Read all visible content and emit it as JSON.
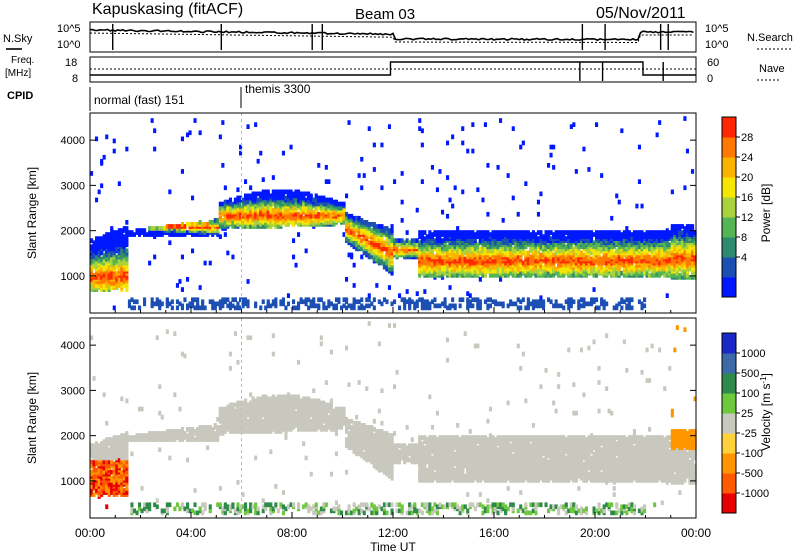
{
  "header": {
    "station": "Kapuskasing (fitACF)",
    "beam": "Beam 03",
    "date": "05/Nov/2011"
  },
  "top_panels": {
    "nsky_label": "N.Sky",
    "nsearch_label": "N.Search",
    "noise_ticks": [
      "10^5",
      "10^0"
    ],
    "freq_label_line1": "Freq.",
    "freq_label_line2": "[MHz]",
    "freq_ticks": [
      "18",
      "8"
    ],
    "nave_label": "Nave",
    "nave_ticks": [
      "60",
      "0"
    ],
    "cpid_label": "CPID",
    "cpid_modes": [
      "normal (fast) 151",
      "themis 3300"
    ]
  },
  "chart_data": [
    {
      "type": "heatmap",
      "name": "power",
      "ylabel": "Slant Range [km]",
      "xlabel": "Time UT",
      "x_ticks": [
        "00:00",
        "04:00",
        "08:00",
        "12:00",
        "16:00",
        "20:00",
        "00:00"
      ],
      "x_range_hours": [
        0,
        24
      ],
      "y_ticks": [
        1000,
        2000,
        3000,
        4000
      ],
      "ylim": [
        180,
        4600
      ],
      "colorbar": {
        "label": "Power [dB]",
        "ticks": [
          "28",
          "24",
          "20",
          "16",
          "12",
          "8",
          "4"
        ],
        "colors": [
          "#0018ff",
          "#1c4fb3",
          "#2e8a6e",
          "#55b454",
          "#aad23c",
          "#f6e600",
          "#fab400",
          "#ff7800",
          "#ff2800"
        ]
      }
    },
    {
      "type": "heatmap",
      "name": "velocity",
      "ylabel": "Slant Range [km]",
      "xlabel": "Time UT",
      "x_ticks": [
        "00:00",
        "04:00",
        "08:00",
        "12:00",
        "16:00",
        "20:00",
        "00:00"
      ],
      "x_range_hours": [
        0,
        24
      ],
      "y_ticks": [
        1000,
        2000,
        3000,
        4000
      ],
      "ylim": [
        180,
        4600
      ],
      "colorbar": {
        "label": "Velocity [m s",
        "label_sup": "-1",
        "label_end": "]",
        "ticks": [
          "1000",
          "500",
          "100",
          "25",
          "-25",
          "-100",
          "-500",
          "-1000"
        ],
        "colors": [
          "#1a28c8",
          "#3c6aa8",
          "#2e8a4a",
          "#6ec83c",
          "#c8c8be",
          "#ffd23c",
          "#ff9600",
          "#ff5a00",
          "#e60000"
        ]
      }
    }
  ],
  "xaxis": {
    "label": "Time UT",
    "ticks": [
      "00:00",
      "04:00",
      "08:00",
      "12:00",
      "16:00",
      "20:00",
      "00:00"
    ]
  }
}
